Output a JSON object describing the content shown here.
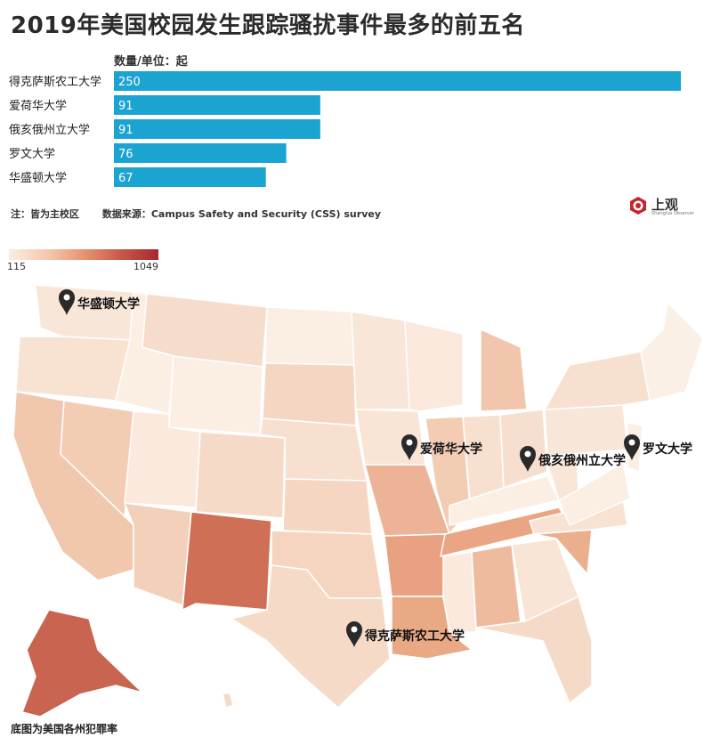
{
  "title": "2019年美国校园发生跟踪骚扰事件最多的前五名",
  "unit_label": "数量/单位：起",
  "note": "注：皆为主校区",
  "source": "数据来源：Campus Safety and Security (CSS) survey",
  "logo": {
    "text": "上观",
    "sub": "Shanghai Observer"
  },
  "legend": {
    "min": "115",
    "max": "1049"
  },
  "map_caption": "底图为美国各州犯罪率",
  "colors": {
    "bar": "#1ba3d1",
    "map_low": "#fbeee3",
    "map_high": "#a8272f"
  },
  "chart_data": [
    {
      "type": "bar",
      "orientation": "horizontal",
      "categories": [
        "得克萨斯农工大学",
        "爱荷华大学",
        "俄亥俄州立大学",
        "罗文大学",
        "华盛顿大学"
      ],
      "values": [
        250,
        91,
        91,
        76,
        67
      ],
      "title": "2019年美国校园发生跟踪骚扰事件最多的前五名",
      "ylabel": "数量/单位：起",
      "xlim": [
        0,
        250
      ]
    },
    {
      "type": "heatmap",
      "subtype": "choropleth",
      "caption": "底图为美国各州犯罪率",
      "value_range": [
        115,
        1049
      ],
      "markers": [
        "华盛顿大学",
        "爱荷华大学",
        "俄亥俄州立大学",
        "罗文大学",
        "得克萨斯农工大学"
      ]
    }
  ]
}
